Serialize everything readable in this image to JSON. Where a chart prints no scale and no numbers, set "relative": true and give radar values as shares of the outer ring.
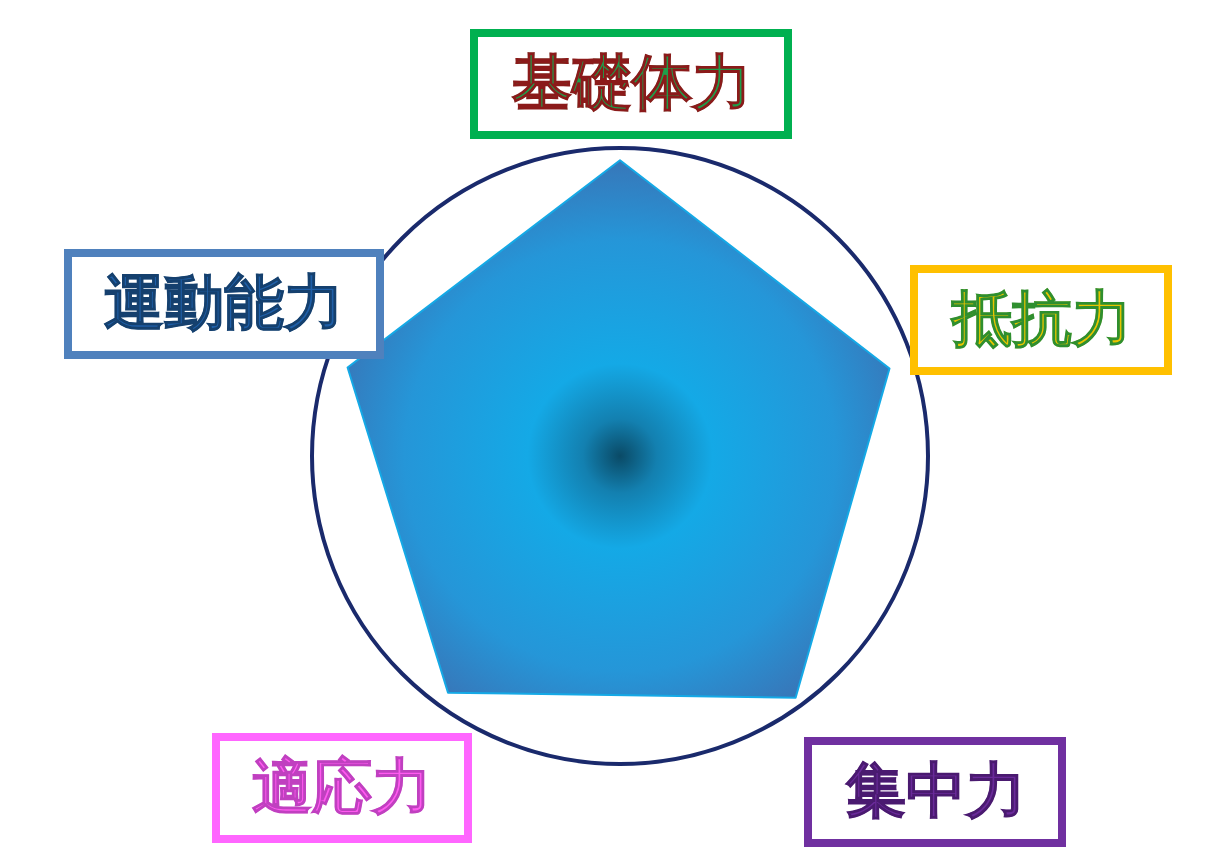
{
  "chart_data": {
    "type": "radar",
    "relative": true,
    "categories": [
      "基礎体力",
      "抵抗力",
      "集中力",
      "適応力",
      "運動能力"
    ],
    "series": [
      {
        "color": "#14a9e6",
        "values": [
          0.96,
          0.92,
          0.97,
          0.95,
          0.93
        ]
      }
    ]
  }
}
